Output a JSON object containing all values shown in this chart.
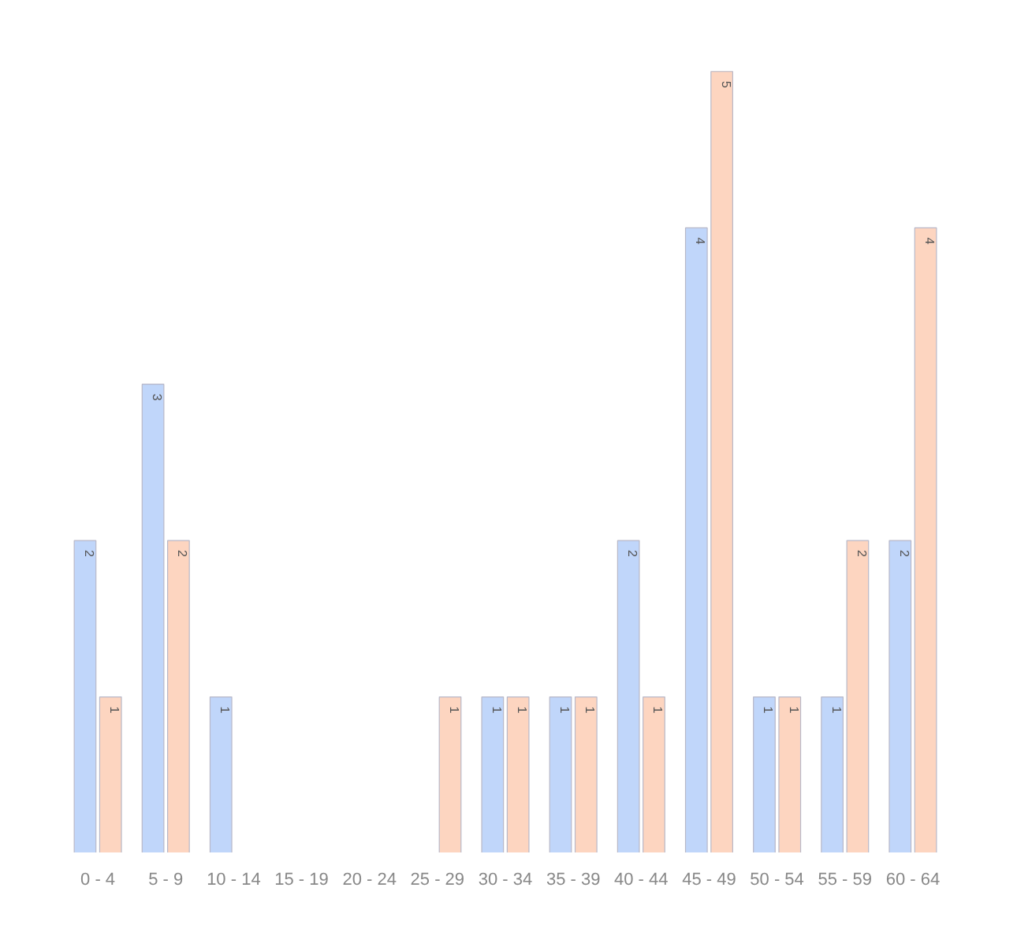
{
  "chart_data": {
    "type": "bar",
    "categories": [
      "0 - 4",
      "5 - 9",
      "10 - 14",
      "15 - 19",
      "20 - 24",
      "25 - 29",
      "30 - 34",
      "35 - 39",
      "40 - 44",
      "45 - 49",
      "50 - 54",
      "55 - 59",
      "60 - 64"
    ],
    "series": [
      {
        "color": "#c0d6fa",
        "values": [
          2,
          3,
          1,
          null,
          null,
          null,
          1,
          1,
          2,
          4,
          1,
          1,
          2
        ]
      },
      {
        "color": "#fdd5c0",
        "values": [
          1,
          2,
          null,
          null,
          null,
          1,
          1,
          1,
          1,
          5,
          1,
          2,
          4
        ]
      }
    ],
    "data_labels": true
  }
}
